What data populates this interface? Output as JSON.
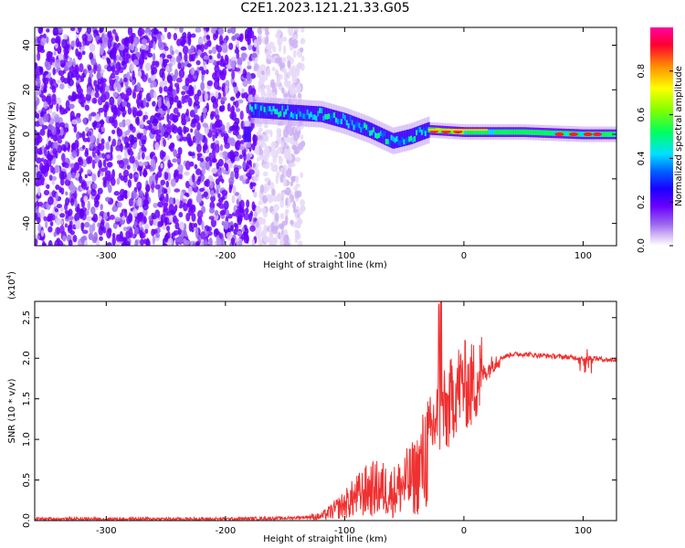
{
  "title": "C2E1.2023.121.21.33.G05",
  "chart_data": [
    {
      "type": "heatmap",
      "xlabel": "Height of straight line (km)",
      "ylabel": "Frequency (Hz)",
      "xlim": [
        -360,
        128
      ],
      "ylim": [
        -50,
        48
      ],
      "xticks": [
        "-300",
        "-200",
        "-100",
        "0",
        "100"
      ],
      "yticks": [
        "-40",
        "-20",
        "0",
        "20",
        "40"
      ],
      "colorbar": {
        "label": "Normalized spectral amplitude",
        "ticks": [
          "0.0",
          "0.2",
          "0.4",
          "0.6",
          "0.8"
        ],
        "range": [
          0,
          1
        ],
        "colormap": [
          "#ffffff",
          "#dcc4f5",
          "#9966ee",
          "#6a00ff",
          "#1a00ff",
          "#0060ff",
          "#00e0ff",
          "#00ff60",
          "#80ff00",
          "#ffff00",
          "#ff9000",
          "#ff0030",
          "#ff00a0"
        ]
      },
      "signal_track": [
        {
          "x": -180,
          "f": 11
        },
        {
          "x": -150,
          "f": 10
        },
        {
          "x": -120,
          "f": 9
        },
        {
          "x": -100,
          "f": 6
        },
        {
          "x": -80,
          "f": 2
        },
        {
          "x": -60,
          "f": -3
        },
        {
          "x": -45,
          "f": -1
        },
        {
          "x": -30,
          "f": 2
        },
        {
          "x": 0,
          "f": 1
        },
        {
          "x": 50,
          "f": 1
        },
        {
          "x": 100,
          "f": 0
        },
        {
          "x": 128,
          "f": 0
        }
      ],
      "grid": false
    },
    {
      "type": "line",
      "xlabel": "Height of straight line (km)",
      "ylabel": "SNR (10 * v/v)",
      "yunit_label": "(x10",
      "yunit_exp": "4",
      "yunit_close": ")",
      "xlim": [
        -360,
        128
      ],
      "ylim": [
        0,
        2.7
      ],
      "xticks": [
        "-300",
        "-200",
        "-100",
        "0",
        "100"
      ],
      "yticks": [
        "0.0",
        "0.5",
        "1.0",
        "1.5",
        "2.0",
        "2.5"
      ],
      "color": "#f03030",
      "series": [
        {
          "x": [
            -360,
            -300,
            -200,
            -150,
            -120,
            -110,
            -100,
            -90,
            -80,
            -70,
            -60,
            -50,
            -40,
            -35,
            -30,
            -25,
            -20,
            -15,
            -10,
            -5,
            0,
            5,
            10,
            15,
            20,
            25,
            30,
            40,
            50,
            60,
            70,
            80,
            90,
            100,
            110,
            120,
            128
          ],
          "values": [
            0.02,
            0.02,
            0.02,
            0.03,
            0.05,
            0.12,
            0.2,
            0.3,
            0.38,
            0.4,
            0.35,
            0.45,
            0.55,
            0.7,
            0.9,
            1.2,
            1.35,
            1.3,
            1.5,
            1.65,
            1.7,
            1.62,
            1.75,
            1.8,
            1.85,
            1.95,
            2.0,
            2.05,
            2.05,
            2.04,
            2.03,
            2.02,
            2.01,
            2.0,
            2.0,
            1.98,
            1.98
          ]
        }
      ],
      "grid": false
    }
  ]
}
